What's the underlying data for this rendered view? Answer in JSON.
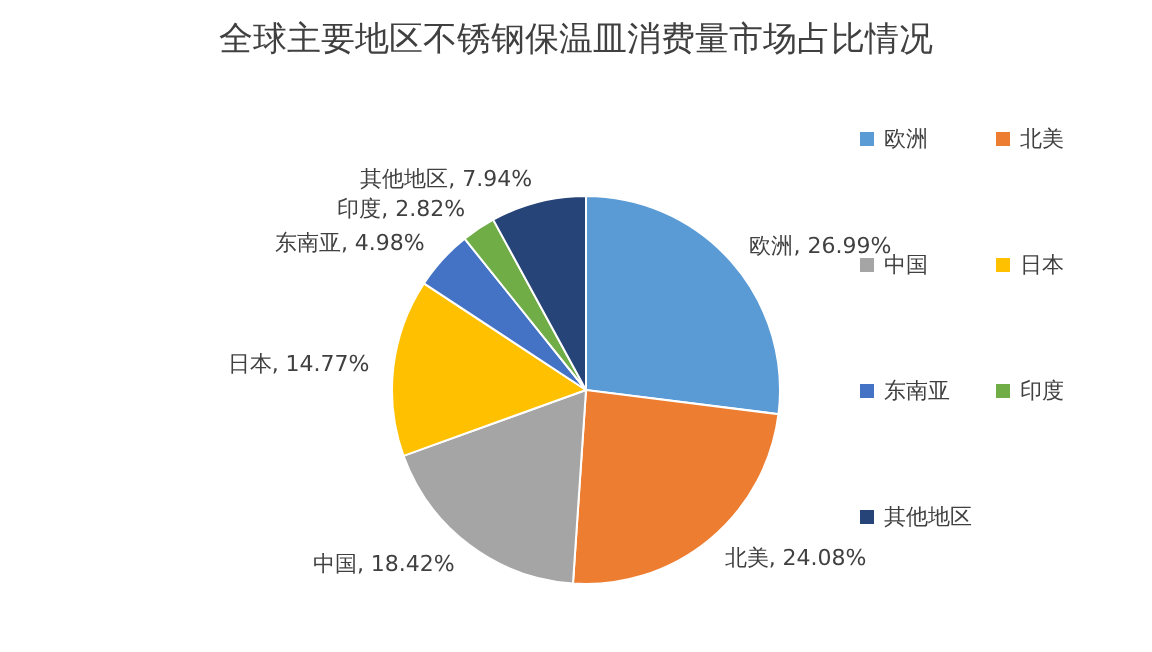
{
  "chart_data": {
    "type": "pie",
    "title": "全球主要地区不锈钢保温皿消费量市场占比情况",
    "categories": [
      "欧洲",
      "北美",
      "中国",
      "日本",
      "东南亚",
      "印度",
      "其他地区"
    ],
    "values": [
      26.99,
      24.08,
      18.42,
      14.77,
      4.98,
      2.82,
      7.94
    ],
    "value_labels": [
      "欧洲, 26.99%",
      "北美, 24.08%",
      "中国, 18.42%",
      "日本, 14.77%",
      "东南亚, 4.98%",
      "印度, 2.82%",
      "其他地区, 7.94%"
    ],
    "colors": [
      "#5b9bd5",
      "#ed7d31",
      "#a5a5a5",
      "#ffc000",
      "#4472c4",
      "#70ad47",
      "#264478"
    ],
    "legend": "right"
  }
}
